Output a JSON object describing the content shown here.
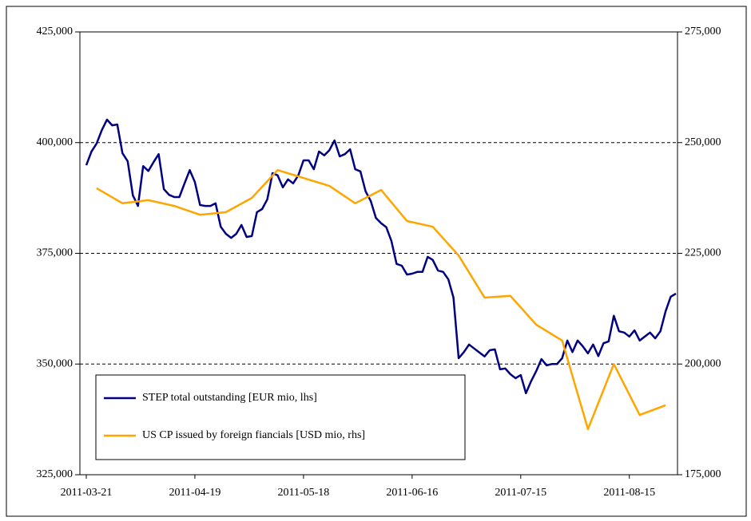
{
  "chart_data": {
    "type": "line",
    "categories": [
      "2011-03-21",
      null,
      null,
      null,
      null,
      null,
      null,
      null,
      null,
      null,
      null,
      null,
      null,
      null,
      null,
      null,
      null,
      null,
      null,
      null,
      null,
      "2011-04-19",
      null,
      null,
      null,
      null,
      null,
      null,
      null,
      null,
      null,
      null,
      null,
      null,
      null,
      null,
      null,
      null,
      null,
      null,
      null,
      null,
      "2011-05-18",
      null,
      null,
      null,
      null,
      null,
      null,
      null,
      null,
      null,
      null,
      null,
      null,
      null,
      null,
      null,
      null,
      null,
      null,
      null,
      null,
      "2011-06-16",
      null,
      null,
      null,
      null,
      null,
      null,
      null,
      null,
      null,
      null,
      null,
      null,
      null,
      null,
      null,
      null,
      null,
      null,
      null,
      null,
      "2011-07-15",
      null,
      null,
      null,
      null,
      null,
      null,
      null,
      null,
      null,
      null,
      null,
      null,
      null,
      null,
      null,
      null,
      null,
      null,
      null,
      null,
      "2011-08-15",
      null,
      null,
      null,
      null,
      null,
      null,
      null,
      null,
      null
    ],
    "series": [
      {
        "name": "STEP total outstanding [EUR mio, lhs]",
        "color": "#000080",
        "values": [
          394900,
          398000,
          399800,
          402800,
          405200,
          403900,
          404100,
          397600,
          395800,
          388100,
          385700,
          394700,
          393600,
          395600,
          397400,
          389500,
          388200,
          387700,
          387700,
          390800,
          393800,
          391100,
          385900,
          385700,
          385700,
          386300,
          381000,
          379400,
          378500,
          379400,
          381400,
          378700,
          378900,
          384300,
          385000,
          387200,
          393100,
          392600,
          389900,
          391700,
          390800,
          392600,
          396000,
          396000,
          394000,
          398000,
          397100,
          398300,
          400500,
          396900,
          397400,
          398500,
          394000,
          393500,
          389000,
          386800,
          383000,
          381800,
          380900,
          377800,
          372600,
          372200,
          370200,
          370400,
          370800,
          370800,
          374200,
          373500,
          371100,
          370800,
          369100,
          365000,
          351300,
          352700,
          354400,
          353500,
          352600,
          351700,
          353100,
          353300,
          348800,
          349000,
          347700,
          346800,
          347500,
          343400,
          346100,
          348400,
          351100,
          349700,
          350000,
          350000,
          351300,
          355300,
          352700,
          355300,
          354000,
          352400,
          354400,
          351800,
          354700,
          355100,
          360900,
          357400,
          357100,
          356200,
          357600,
          355300,
          356200,
          357100,
          355800,
          357400,
          361900,
          365200,
          365900
        ]
      },
      {
        "name": "US CP issued by foreign fiancials [USD mio, rhs]",
        "color": "#FFA500",
        "axis": "y2",
        "span_gaps": true,
        "values": [
          null,
          null,
          239700,
          null,
          null,
          null,
          null,
          236300,
          null,
          null,
          null,
          null,
          237000,
          null,
          null,
          null,
          null,
          235700,
          null,
          null,
          null,
          null,
          233700,
          null,
          null,
          null,
          null,
          234300,
          null,
          null,
          null,
          null,
          237500,
          null,
          null,
          null,
          null,
          243800,
          null,
          null,
          null,
          null,
          242000,
          null,
          null,
          null,
          null,
          240200,
          null,
          null,
          null,
          null,
          236300,
          null,
          null,
          null,
          null,
          239300,
          null,
          null,
          null,
          null,
          232300,
          null,
          null,
          null,
          null,
          231000,
          null,
          null,
          null,
          null,
          224500,
          null,
          null,
          null,
          null,
          215000,
          null,
          null,
          null,
          null,
          215400,
          null,
          null,
          null,
          null,
          208900,
          null,
          null,
          null,
          null,
          205300,
          null,
          null,
          null,
          null,
          185300,
          null,
          null,
          null,
          null,
          200000,
          null,
          null,
          null,
          null,
          188500,
          null,
          null,
          null,
          null,
          190700,
          null,
          null
        ]
      }
    ],
    "ylim": [
      325000,
      425000
    ],
    "yticks": [
      {
        "value": 325000,
        "label": "325,000"
      },
      {
        "value": 350000,
        "label": "350,000"
      },
      {
        "value": 375000,
        "label": "375,000"
      },
      {
        "value": 400000,
        "label": "400,000"
      },
      {
        "value": 425000,
        "label": "425,000"
      }
    ],
    "y2lim": [
      175000,
      275000
    ],
    "y2ticks": [
      {
        "value": 175000,
        "label": "175,000"
      },
      {
        "value": 200000,
        "label": "200,000"
      },
      {
        "value": 225000,
        "label": "225,000"
      },
      {
        "value": 250000,
        "label": "250,000"
      },
      {
        "value": 275000,
        "label": "275,000"
      }
    ],
    "grid": true,
    "grid_style": "dashed",
    "legend": "lower left"
  }
}
